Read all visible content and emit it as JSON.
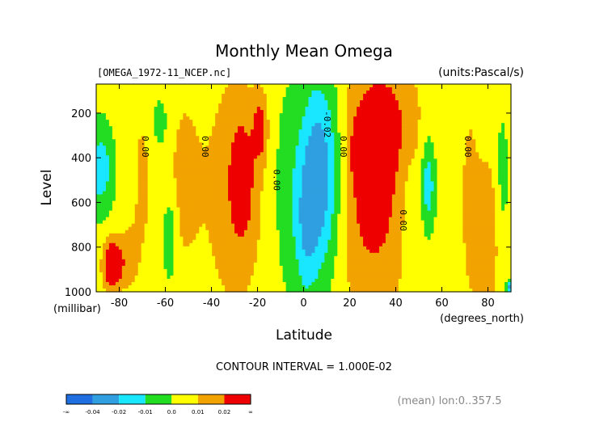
{
  "header": {
    "title": "Monthly Mean Omega",
    "file_label": "[OMEGA_1972-11_NCEP.nc]",
    "units_label": "(units:Pascal/s)"
  },
  "footer": {
    "contour_interval": "CONTOUR INTERVAL = 1.000E-02",
    "mean_note": "(mean) lon:0..357.5"
  },
  "chart_data": {
    "type": "heatmap",
    "title": "Monthly Mean Omega",
    "xlabel": "Latitude",
    "xunit": "(degrees_north)",
    "ylabel": "Level",
    "yunit": "(millibar)",
    "xlim": [
      -90,
      90
    ],
    "ylim": [
      1000,
      70
    ],
    "y_inverted": true,
    "grid": false,
    "x_ticks": [
      -80,
      -60,
      -40,
      -20,
      0,
      20,
      40,
      60,
      80
    ],
    "x_tick_labels": [
      "-80",
      "-60",
      "-40",
      "-20",
      "0",
      "20",
      "40",
      "60",
      "80"
    ],
    "y_ticks": [
      200,
      400,
      600,
      800,
      1000
    ],
    "y_tick_labels": [
      "200",
      "400",
      "600",
      "800",
      "1000"
    ],
    "contour_labels": [
      {
        "text": "0.00",
        "lat": -70,
        "lev": 350
      },
      {
        "text": "0.00",
        "lat": -44,
        "lev": 350
      },
      {
        "text": "0.00",
        "lat": -13,
        "lev": 500
      },
      {
        "text": "-0.02",
        "lat": 9,
        "lev": 250
      },
      {
        "text": "0.00",
        "lat": 16,
        "lev": 350
      },
      {
        "text": "0.00",
        "lat": 42,
        "lev": 680
      },
      {
        "text": "0.00",
        "lat": 70,
        "lev": 350
      }
    ],
    "colorbar": {
      "bounds": [
        "-∞",
        "-0.04",
        "-0.02",
        "-0.01",
        "0.0",
        "0.01",
        "0.02",
        "∞"
      ],
      "colors": [
        "#1f6fe0",
        "#2f9fe0",
        "#19e6ff",
        "#22dd22",
        "#ffff00",
        "#f2a300",
        "#ee0000"
      ]
    },
    "levels": {
      "min": -0.05,
      "max": 0.03,
      "interval": 0.01
    },
    "features": [
      {
        "lat": -88,
        "lev": 450,
        "val": -0.02,
        "rx": 5,
        "ry": 180
      },
      {
        "lat": -83,
        "lev": 880,
        "val": 0.035,
        "rx": 4,
        "ry": 110
      },
      {
        "lat": -76,
        "lev": 850,
        "val": 0.012,
        "rx": 4,
        "ry": 150
      },
      {
        "lat": -70,
        "lev": 500,
        "val": 0.009,
        "rx": 5,
        "ry": 450
      },
      {
        "lat": -53,
        "lev": 500,
        "val": 0.009,
        "rx": 8,
        "ry": 450
      },
      {
        "lat": -58,
        "lev": 750,
        "val": -0.014,
        "rx": 3,
        "ry": 200
      },
      {
        "lat": -62,
        "lev": 250,
        "val": -0.008,
        "rx": 5,
        "ry": 150
      },
      {
        "lat": -30,
        "lev": 550,
        "val": 0.011,
        "rx": 16,
        "ry": 700
      },
      {
        "lat": -27,
        "lev": 500,
        "val": 0.02,
        "rx": 5,
        "ry": 250
      },
      {
        "lat": -19,
        "lev": 270,
        "val": 0.02,
        "rx": 3,
        "ry": 140
      },
      {
        "lat": -8,
        "lev": 550,
        "val": -0.008,
        "rx": 6,
        "ry": 450
      },
      {
        "lat": 7,
        "lev": 480,
        "val": -0.034,
        "rx": 9,
        "ry": 420
      },
      {
        "lat": 1,
        "lev": 750,
        "val": -0.014,
        "rx": 5,
        "ry": 300
      },
      {
        "lat": 30,
        "lev": 550,
        "val": 0.022,
        "rx": 16,
        "ry": 550
      },
      {
        "lat": 25,
        "lev": 380,
        "val": 0.035,
        "rx": 3,
        "ry": 120
      },
      {
        "lat": 31,
        "lev": 650,
        "val": 0.035,
        "rx": 1.5,
        "ry": 70
      },
      {
        "lat": 37,
        "lev": 200,
        "val": 0.01,
        "rx": 15,
        "ry": 250
      },
      {
        "lat": 46,
        "lev": 700,
        "val": -0.008,
        "rx": 3,
        "ry": 300
      },
      {
        "lat": 54,
        "lev": 520,
        "val": -0.022,
        "rx": 3,
        "ry": 200
      },
      {
        "lat": 72,
        "lev": 600,
        "val": 0.009,
        "rx": 5,
        "ry": 600
      },
      {
        "lat": 80,
        "lev": 750,
        "val": 0.015,
        "rx": 5,
        "ry": 350
      },
      {
        "lat": 86,
        "lev": 500,
        "val": -0.007,
        "rx": 3,
        "ry": 300
      },
      {
        "lat": 89,
        "lev": 980,
        "val": -0.03,
        "rx": 1,
        "ry": 30
      }
    ]
  }
}
